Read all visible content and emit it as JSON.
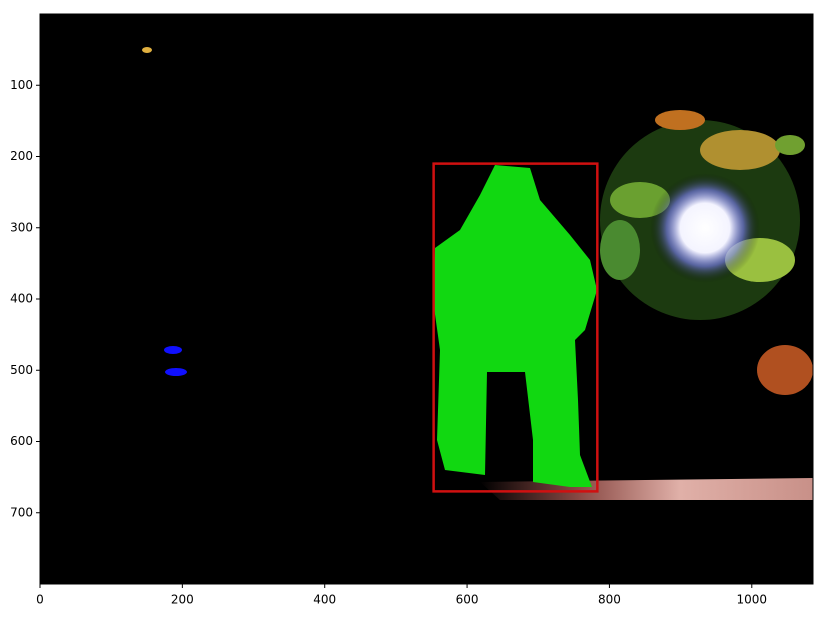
{
  "chart_data": {
    "type": "image",
    "xlim": [
      0,
      1086
    ],
    "ylim": [
      800,
      0
    ],
    "xticks": [
      0,
      200,
      400,
      600,
      800,
      1000
    ],
    "yticks": [
      100,
      200,
      300,
      400,
      500,
      600,
      700
    ],
    "box": {
      "x": [
        553,
        783
      ],
      "y": [
        210,
        670
      ],
      "color": "#d01010"
    },
    "mask_color": "#11d811"
  }
}
